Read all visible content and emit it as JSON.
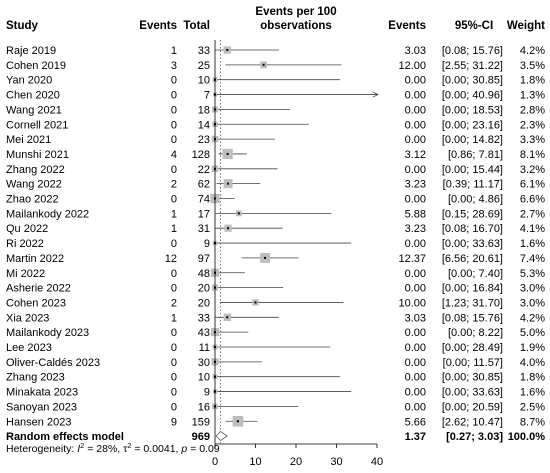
{
  "chart_data": {
    "type": "forest",
    "headers": {
      "study": "Study",
      "events": "Events",
      "total": "Total",
      "plot_line1": "Events per 100",
      "plot_line2": "observations",
      "events_est": "Events",
      "ci": "95%-CI",
      "weight": "Weight"
    },
    "xlim": [
      0,
      40
    ],
    "xticks": [
      "0",
      "10",
      "20",
      "30",
      "40"
    ],
    "studies": [
      {
        "study": "Raje 2019",
        "events": "1",
        "total": "33",
        "est": 3.03,
        "lo": 0.08,
        "hi": 15.76,
        "est_text": "3.03",
        "ci_text": "[0.08; 15.76]",
        "weight_text": "4.2%",
        "weight": 4.2
      },
      {
        "study": "Cohen 2019",
        "events": "3",
        "total": "25",
        "est": 12.0,
        "lo": 2.55,
        "hi": 31.22,
        "est_text": "12.00",
        "ci_text": "[2.55; 31.22]",
        "weight_text": "3.5%",
        "weight": 3.5
      },
      {
        "study": "Yan 2020",
        "events": "0",
        "total": "10",
        "est": 0.0,
        "lo": 0.0,
        "hi": 30.85,
        "est_text": "0.00",
        "ci_text": "[0.00; 30.85]",
        "weight_text": "1.8%",
        "weight": 1.8
      },
      {
        "study": "Chen 2020",
        "events": "0",
        "total": "7",
        "est": 0.0,
        "lo": 0.0,
        "hi": 40.96,
        "est_text": "0.00",
        "ci_text": "[0.00; 40.96]",
        "weight_text": "1.3%",
        "weight": 1.3
      },
      {
        "study": "Wang 2021",
        "events": "0",
        "total": "18",
        "est": 0.0,
        "lo": 0.0,
        "hi": 18.53,
        "est_text": "0.00",
        "ci_text": "[0.00; 18.53]",
        "weight_text": "2.8%",
        "weight": 2.8
      },
      {
        "study": "Cornell 2021",
        "events": "0",
        "total": "14",
        "est": 0.0,
        "lo": 0.0,
        "hi": 23.16,
        "est_text": "0.00",
        "ci_text": "[0.00; 23.16]",
        "weight_text": "2.3%",
        "weight": 2.3
      },
      {
        "study": "Mei 2021",
        "events": "0",
        "total": "23",
        "est": 0.0,
        "lo": 0.0,
        "hi": 14.82,
        "est_text": "0.00",
        "ci_text": "[0.00; 14.82]",
        "weight_text": "3.3%",
        "weight": 3.3
      },
      {
        "study": "Munshi 2021",
        "events": "4",
        "total": "128",
        "est": 3.12,
        "lo": 0.86,
        "hi": 7.81,
        "est_text": "3.12",
        "ci_text": "[0.86; 7.81]",
        "weight_text": "8.1%",
        "weight": 8.1
      },
      {
        "study": "Zhang 2022",
        "events": "0",
        "total": "22",
        "est": 0.0,
        "lo": 0.0,
        "hi": 15.44,
        "est_text": "0.00",
        "ci_text": "[0.00; 15.44]",
        "weight_text": "3.2%",
        "weight": 3.2
      },
      {
        "study": "Wang 2022",
        "events": "2",
        "total": "62",
        "est": 3.23,
        "lo": 0.39,
        "hi": 11.17,
        "est_text": "3.23",
        "ci_text": "[0.39; 11.17]",
        "weight_text": "6.1%",
        "weight": 6.1
      },
      {
        "study": "Zhao 2022",
        "events": "0",
        "total": "74",
        "est": 0.0,
        "lo": 0.0,
        "hi": 4.86,
        "est_text": "0.00",
        "ci_text": "[0.00; 4.86]",
        "weight_text": "6.6%",
        "weight": 6.6
      },
      {
        "study": "Mailankody 2022",
        "events": "1",
        "total": "17",
        "est": 5.88,
        "lo": 0.15,
        "hi": 28.69,
        "est_text": "5.88",
        "ci_text": "[0.15; 28.69]",
        "weight_text": "2.7%",
        "weight": 2.7
      },
      {
        "study": "Qu 2022",
        "events": "1",
        "total": "31",
        "est": 3.23,
        "lo": 0.08,
        "hi": 16.7,
        "est_text": "3.23",
        "ci_text": "[0.08; 16.70]",
        "weight_text": "4.1%",
        "weight": 4.1
      },
      {
        "study": "Ri 2022",
        "events": "0",
        "total": "9",
        "est": 0.0,
        "lo": 0.0,
        "hi": 33.63,
        "est_text": "0.00",
        "ci_text": "[0.00; 33.63]",
        "weight_text": "1.6%",
        "weight": 1.6
      },
      {
        "study": "Martin 2022",
        "events": "12",
        "total": "97",
        "est": 12.37,
        "lo": 6.56,
        "hi": 20.61,
        "est_text": "12.37",
        "ci_text": "[6.56; 20.61]",
        "weight_text": "7.4%",
        "weight": 7.4
      },
      {
        "study": "Mi 2022",
        "events": "0",
        "total": "48",
        "est": 0.0,
        "lo": 0.0,
        "hi": 7.4,
        "est_text": "0.00",
        "ci_text": "[0.00; 7.40]",
        "weight_text": "5.3%",
        "weight": 5.3
      },
      {
        "study": "Asherie 2022",
        "events": "0",
        "total": "20",
        "est": 0.0,
        "lo": 0.0,
        "hi": 16.84,
        "est_text": "0.00",
        "ci_text": "[0.00; 16.84]",
        "weight_text": "3.0%",
        "weight": 3.0
      },
      {
        "study": "Cohen 2023",
        "events": "2",
        "total": "20",
        "est": 10.0,
        "lo": 1.23,
        "hi": 31.7,
        "est_text": "10.00",
        "ci_text": "[1.23; 31.70]",
        "weight_text": "3.0%",
        "weight": 3.0
      },
      {
        "study": "Xia 2023",
        "events": "1",
        "total": "33",
        "est": 3.03,
        "lo": 0.08,
        "hi": 15.76,
        "est_text": "3.03",
        "ci_text": "[0.08; 15.76]",
        "weight_text": "4.2%",
        "weight": 4.2
      },
      {
        "study": "Mailankody 2023",
        "events": "0",
        "total": "43",
        "est": 0.0,
        "lo": 0.0,
        "hi": 8.22,
        "est_text": "0.00",
        "ci_text": "[0.00; 8.22]",
        "weight_text": "5.0%",
        "weight": 5.0
      },
      {
        "study": "Lee 2023",
        "events": "0",
        "total": "11",
        "est": 0.0,
        "lo": 0.0,
        "hi": 28.49,
        "est_text": "0.00",
        "ci_text": "[0.00; 28.49]",
        "weight_text": "1.9%",
        "weight": 1.9
      },
      {
        "study": "Oliver-Caldés 2023",
        "events": "0",
        "total": "30",
        "est": 0.0,
        "lo": 0.0,
        "hi": 11.57,
        "est_text": "0.00",
        "ci_text": "[0.00; 11.57]",
        "weight_text": "4.0%",
        "weight": 4.0
      },
      {
        "study": "Zhang 2023",
        "events": "0",
        "total": "10",
        "est": 0.0,
        "lo": 0.0,
        "hi": 30.85,
        "est_text": "0.00",
        "ci_text": "[0.00; 30.85]",
        "weight_text": "1.8%",
        "weight": 1.8
      },
      {
        "study": "Minakata 2023",
        "events": "0",
        "total": "9",
        "est": 0.0,
        "lo": 0.0,
        "hi": 33.63,
        "est_text": "0.00",
        "ci_text": "[0.00; 33.63]",
        "weight_text": "1.6%",
        "weight": 1.6
      },
      {
        "study": "Sanoyan 2023",
        "events": "0",
        "total": "16",
        "est": 0.0,
        "lo": 0.0,
        "hi": 20.59,
        "est_text": "0.00",
        "ci_text": "[0.00; 20.59]",
        "weight_text": "2.5%",
        "weight": 2.5
      },
      {
        "study": "Hansen 2023",
        "events": "9",
        "total": "159",
        "est": 5.66,
        "lo": 2.62,
        "hi": 10.47,
        "est_text": "5.66",
        "ci_text": "[2.62; 10.47]",
        "weight_text": "8.7%",
        "weight": 8.7
      }
    ],
    "pooled": {
      "label": "Random effects model",
      "total": "969",
      "est": 1.37,
      "lo": 0.27,
      "hi": 3.03,
      "est_text": "1.37",
      "ci_text": "[0.27; 3.03]",
      "weight_text": "100.0%"
    },
    "heterogeneity": {
      "prefix": "Heterogeneity: ",
      "i2_label": "I",
      "i2_sup": "2",
      "i2_value": " = 28%, ",
      "tau2_label": "τ",
      "tau2_sup": "2",
      "tau2_value": " = 0.0041, ",
      "p_label": "p",
      "p_value": " = 0.09"
    },
    "colors": {
      "square": "#bdbdbd",
      "line": "#444444",
      "reference": "#555555"
    }
  }
}
